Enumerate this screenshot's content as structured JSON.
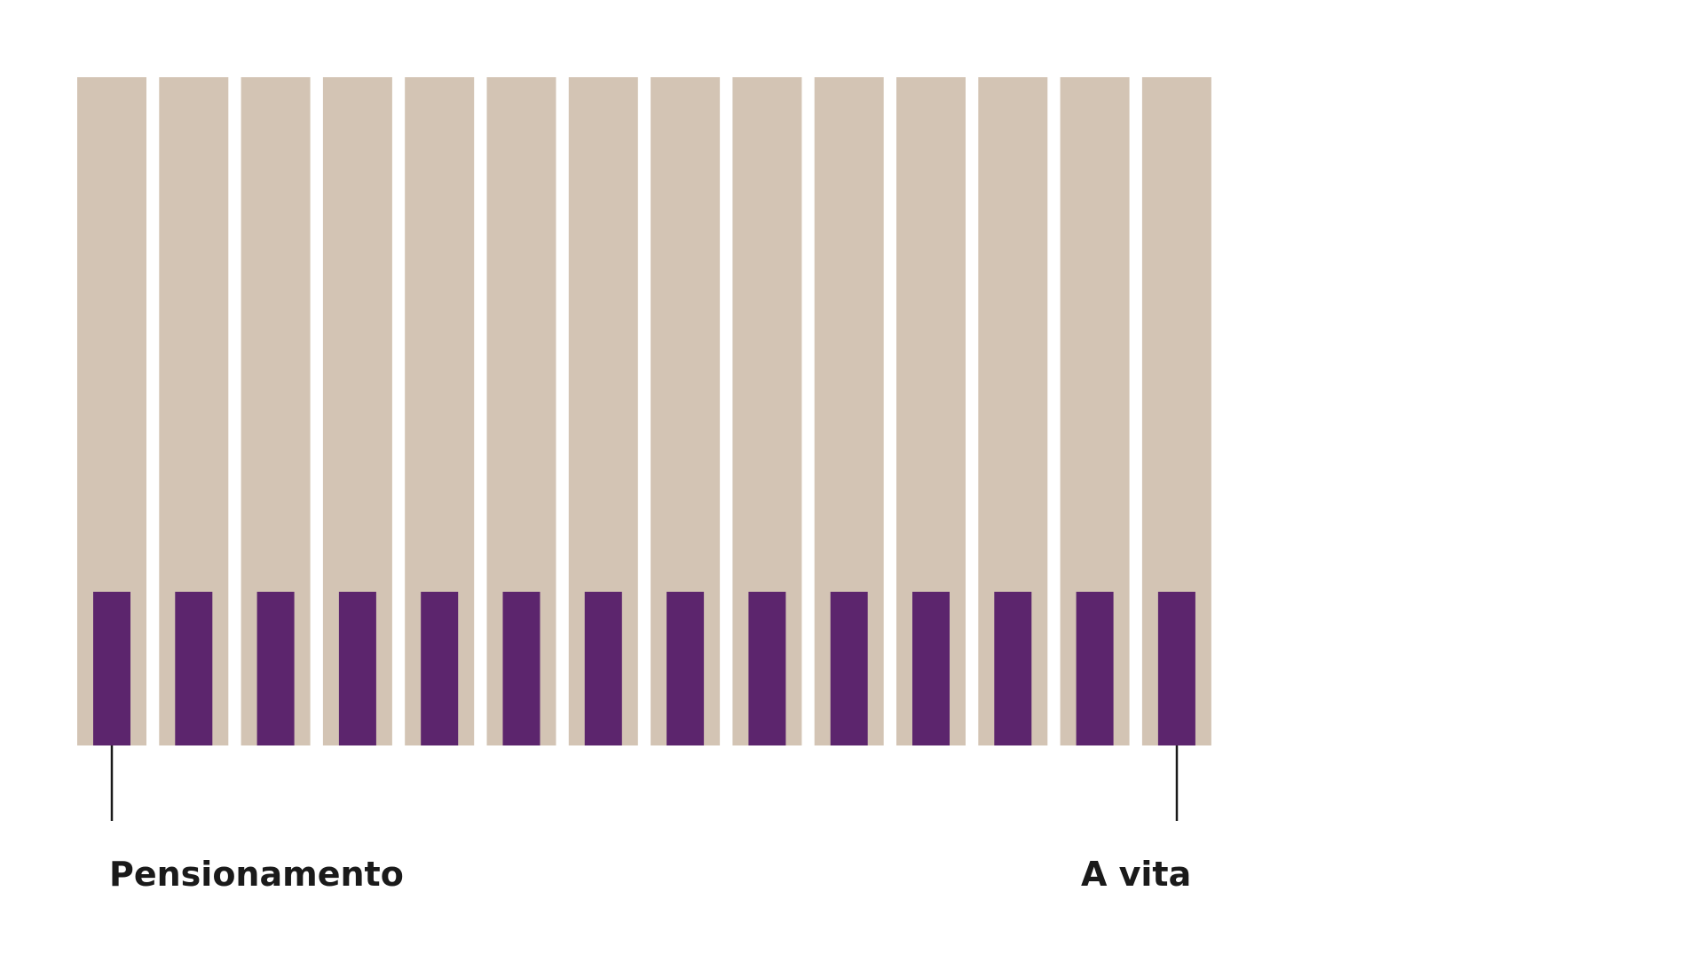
{
  "colors": {
    "background": "#ffffff",
    "column": "#d3c4b4",
    "marker": "#5c256d",
    "leader_line": "#1a1a1a"
  },
  "periods": {
    "count": 14,
    "marker_fraction_of_column": 0.23
  },
  "labels": {
    "start": "Pensionamento",
    "end": "A vita"
  }
}
